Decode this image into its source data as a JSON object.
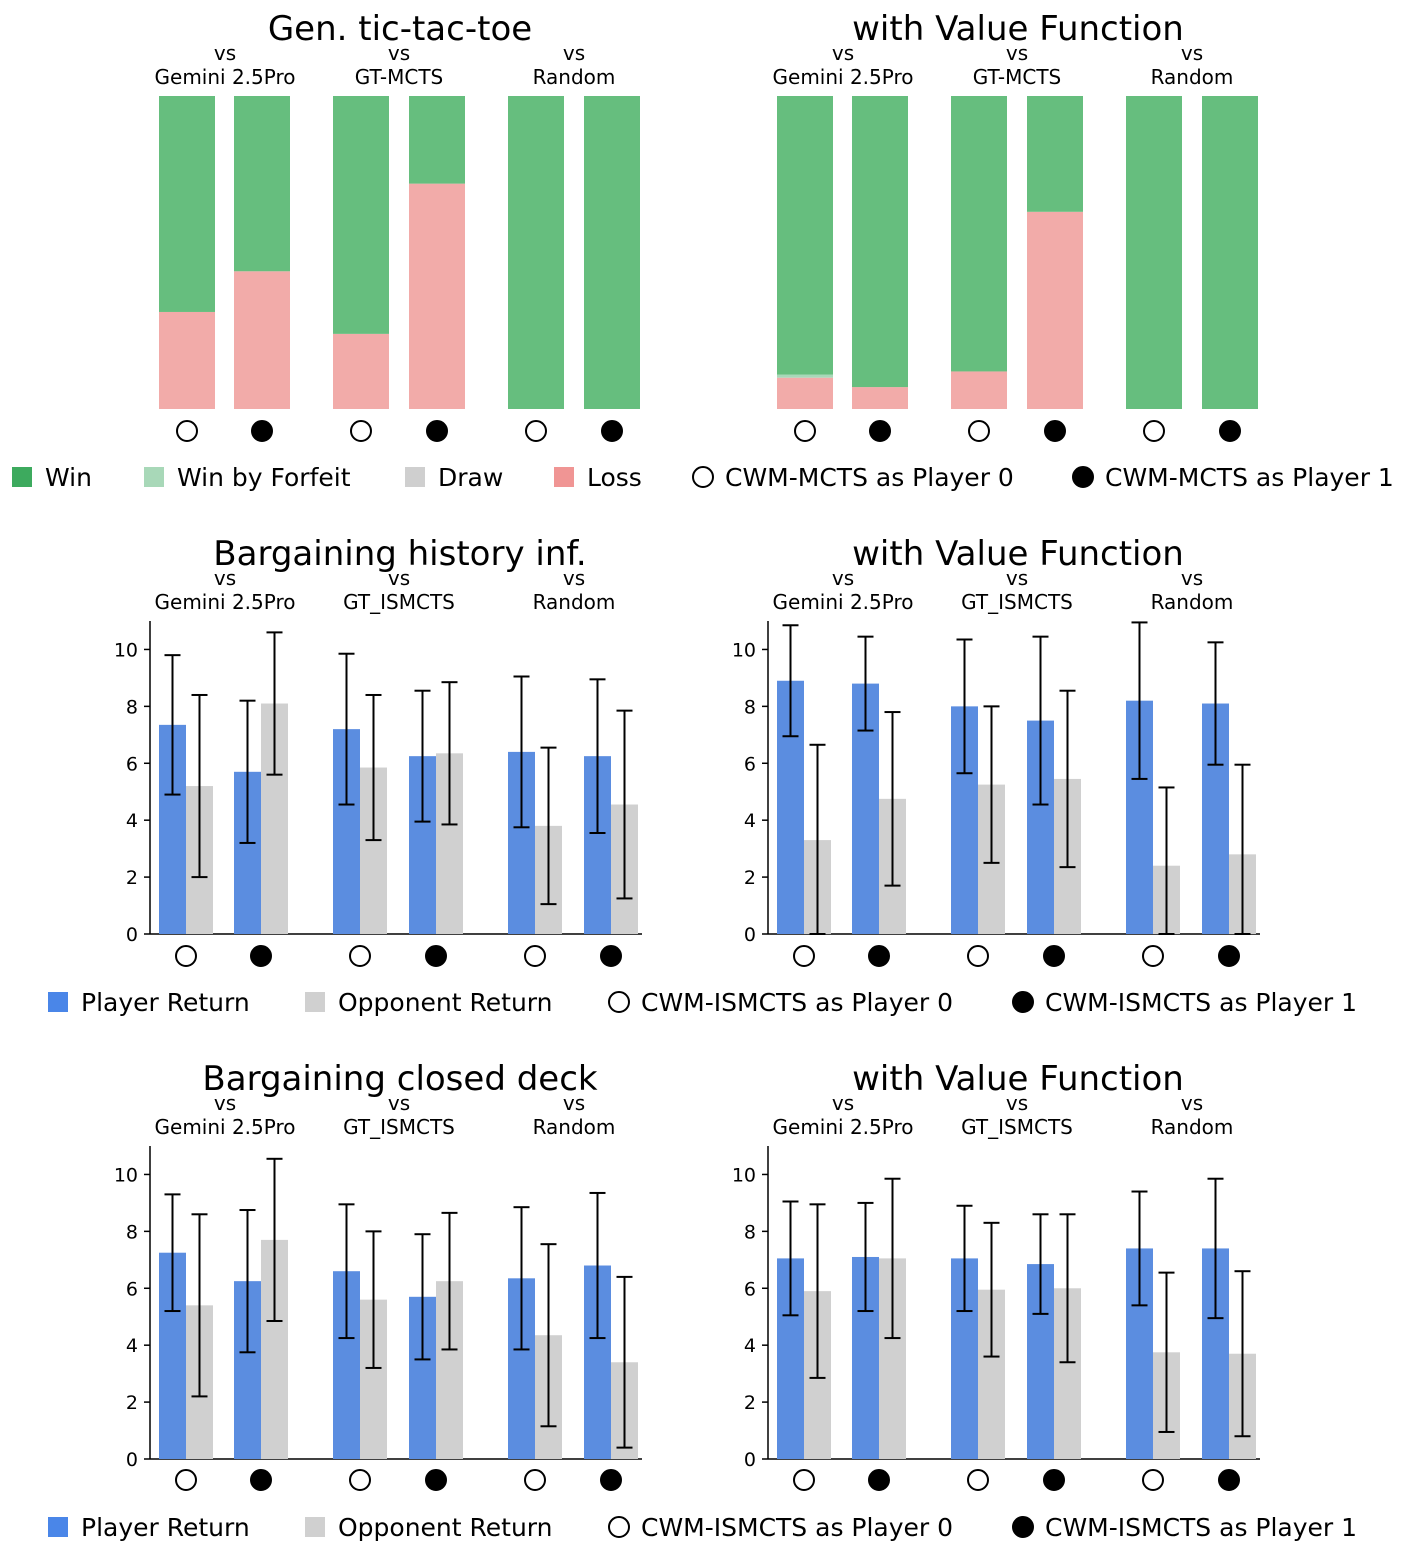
{
  "colors": {
    "win": "#66BE7E",
    "win_forfeit": "#A8D8B8",
    "draw": "#CFCFCF",
    "loss": "#F2ABA9",
    "player": "#5B8DE0",
    "opponent": "#D0D0D0",
    "win_legend": "#3DAA5E",
    "loss_legend": "#F09594",
    "player_legend": "#4A86E8"
  },
  "legend_ttt": [
    {
      "kind": "square",
      "color": "win_legend",
      "label": "Win"
    },
    {
      "kind": "square",
      "color": "win_forfeit",
      "label": "Win by Forfeit"
    },
    {
      "kind": "square",
      "color": "draw",
      "label": "Draw"
    },
    {
      "kind": "square",
      "color": "loss_legend",
      "label": "Loss"
    },
    {
      "kind": "open",
      "label": "CWM-MCTS as Player 0"
    },
    {
      "kind": "filled",
      "label": "CWM-MCTS as Player 1"
    }
  ],
  "legend_barg": [
    {
      "kind": "square",
      "color": "player_legend",
      "label": "Player Return"
    },
    {
      "kind": "square",
      "color": "opponent",
      "label": "Opponent Return"
    },
    {
      "kind": "open",
      "label": "CWM-ISMCTS as Player 0"
    },
    {
      "kind": "filled",
      "label": "CWM-ISMCTS as Player 1"
    }
  ],
  "chart_data": [
    {
      "type": "bar",
      "stacked": true,
      "title": "Gen. tic-tac-toe",
      "groups": [
        {
          "vs": "vs",
          "opponent": "Gemini 2.5Pro"
        },
        {
          "vs": "vs",
          "opponent": "GT-MCTS"
        },
        {
          "vs": "vs",
          "opponent": "Random"
        }
      ],
      "bars": [
        {
          "win": 0.69,
          "win_forfeit": 0,
          "draw": 0,
          "loss": 0.31
        },
        {
          "win": 0.56,
          "win_forfeit": 0,
          "draw": 0,
          "loss": 0.44
        },
        {
          "win": 0.76,
          "win_forfeit": 0,
          "draw": 0,
          "loss": 0.24
        },
        {
          "win": 0.28,
          "win_forfeit": 0,
          "draw": 0,
          "loss": 0.72
        },
        {
          "win": 1.0,
          "win_forfeit": 0,
          "draw": 0,
          "loss": 0
        },
        {
          "win": 1.0,
          "win_forfeit": 0,
          "draw": 0,
          "loss": 0
        }
      ]
    },
    {
      "type": "bar",
      "stacked": true,
      "title": "with Value Function",
      "groups": [
        {
          "vs": "vs",
          "opponent": "Gemini 2.5Pro"
        },
        {
          "vs": "vs",
          "opponent": "GT-MCTS"
        },
        {
          "vs": "vs",
          "opponent": "Random"
        }
      ],
      "bars": [
        {
          "win": 0.89,
          "win_forfeit": 0.01,
          "draw": 0,
          "loss": 0.1
        },
        {
          "win": 0.93,
          "win_forfeit": 0,
          "draw": 0,
          "loss": 0.07
        },
        {
          "win": 0.88,
          "win_forfeit": 0,
          "draw": 0,
          "loss": 0.12
        },
        {
          "win": 0.37,
          "win_forfeit": 0,
          "draw": 0,
          "loss": 0.63
        },
        {
          "win": 1.0,
          "win_forfeit": 0,
          "draw": 0,
          "loss": 0
        },
        {
          "win": 1.0,
          "win_forfeit": 0,
          "draw": 0,
          "loss": 0
        }
      ]
    },
    {
      "type": "bar",
      "title": "Bargaining history inf.",
      "ylim": [
        0,
        11
      ],
      "yticks": [
        0,
        2,
        4,
        6,
        8,
        10
      ],
      "groups": [
        {
          "vs": "vs",
          "opponent": "Gemini 2.5Pro"
        },
        {
          "vs": "vs",
          "opponent": "GT_ISMCTS"
        },
        {
          "vs": "vs",
          "opponent": "Random"
        }
      ],
      "bars": [
        {
          "player": 7.35,
          "player_err": 2.45,
          "opponent": 5.2,
          "opponent_err": 3.2
        },
        {
          "player": 5.7,
          "player_err": 2.5,
          "opponent": 8.1,
          "opponent_err": 2.5
        },
        {
          "player": 7.2,
          "player_err": 2.65,
          "opponent": 5.85,
          "opponent_err": 2.55
        },
        {
          "player": 6.25,
          "player_err": 2.3,
          "opponent": 6.35,
          "opponent_err": 2.5
        },
        {
          "player": 6.4,
          "player_err": 2.65,
          "opponent": 3.8,
          "opponent_err": 2.75
        },
        {
          "player": 6.25,
          "player_err": 2.7,
          "opponent": 4.55,
          "opponent_err": 3.3
        }
      ]
    },
    {
      "type": "bar",
      "title": "with Value Function",
      "ylim": [
        0,
        11
      ],
      "yticks": [
        0,
        2,
        4,
        6,
        8,
        10
      ],
      "groups": [
        {
          "vs": "vs",
          "opponent": "Gemini 2.5Pro"
        },
        {
          "vs": "vs",
          "opponent": "GT_ISMCTS"
        },
        {
          "vs": "vs",
          "opponent": "Random"
        }
      ],
      "bars": [
        {
          "player": 8.9,
          "player_err": 1.95,
          "opponent": 3.3,
          "opponent_err": 3.35
        },
        {
          "player": 8.8,
          "player_err": 1.65,
          "opponent": 4.75,
          "opponent_err": 3.05
        },
        {
          "player": 8.0,
          "player_err": 2.35,
          "opponent": 5.25,
          "opponent_err": 2.75
        },
        {
          "player": 7.5,
          "player_err": 2.95,
          "opponent": 5.45,
          "opponent_err": 3.1
        },
        {
          "player": 8.2,
          "player_err": 2.75,
          "opponent": 2.4,
          "opponent_err": 2.75
        },
        {
          "player": 8.1,
          "player_err": 2.15,
          "opponent": 2.8,
          "opponent_err": 3.15
        }
      ]
    },
    {
      "type": "bar",
      "title": "Bargaining closed deck",
      "ylim": [
        0,
        11
      ],
      "yticks": [
        0,
        2,
        4,
        6,
        8,
        10
      ],
      "groups": [
        {
          "vs": "vs",
          "opponent": "Gemini 2.5Pro"
        },
        {
          "vs": "vs",
          "opponent": "GT_ISMCTS"
        },
        {
          "vs": "vs",
          "opponent": "Random"
        }
      ],
      "bars": [
        {
          "player": 7.25,
          "player_err": 2.05,
          "opponent": 5.4,
          "opponent_err": 3.2
        },
        {
          "player": 6.25,
          "player_err": 2.5,
          "opponent": 7.7,
          "opponent_err": 2.85
        },
        {
          "player": 6.6,
          "player_err": 2.35,
          "opponent": 5.6,
          "opponent_err": 2.4
        },
        {
          "player": 5.7,
          "player_err": 2.2,
          "opponent": 6.25,
          "opponent_err": 2.4
        },
        {
          "player": 6.35,
          "player_err": 2.5,
          "opponent": 4.35,
          "opponent_err": 3.2
        },
        {
          "player": 6.8,
          "player_err": 2.55,
          "opponent": 3.4,
          "opponent_err": 3.0
        }
      ]
    },
    {
      "type": "bar",
      "title": "with Value Function",
      "ylim": [
        0,
        11
      ],
      "yticks": [
        0,
        2,
        4,
        6,
        8,
        10
      ],
      "groups": [
        {
          "vs": "vs",
          "opponent": "Gemini 2.5Pro"
        },
        {
          "vs": "vs",
          "opponent": "GT_ISMCTS"
        },
        {
          "vs": "vs",
          "opponent": "Random"
        }
      ],
      "bars": [
        {
          "player": 7.05,
          "player_err": 2.0,
          "opponent": 5.9,
          "opponent_err": 3.05
        },
        {
          "player": 7.1,
          "player_err": 1.9,
          "opponent": 7.05,
          "opponent_err": 2.8
        },
        {
          "player": 7.05,
          "player_err": 1.85,
          "opponent": 5.95,
          "opponent_err": 2.35
        },
        {
          "player": 6.85,
          "player_err": 1.75,
          "opponent": 6.0,
          "opponent_err": 2.6
        },
        {
          "player": 7.4,
          "player_err": 2.0,
          "opponent": 3.75,
          "opponent_err": 2.8
        },
        {
          "player": 7.4,
          "player_err": 2.45,
          "opponent": 3.7,
          "opponent_err": 2.9
        }
      ]
    }
  ]
}
